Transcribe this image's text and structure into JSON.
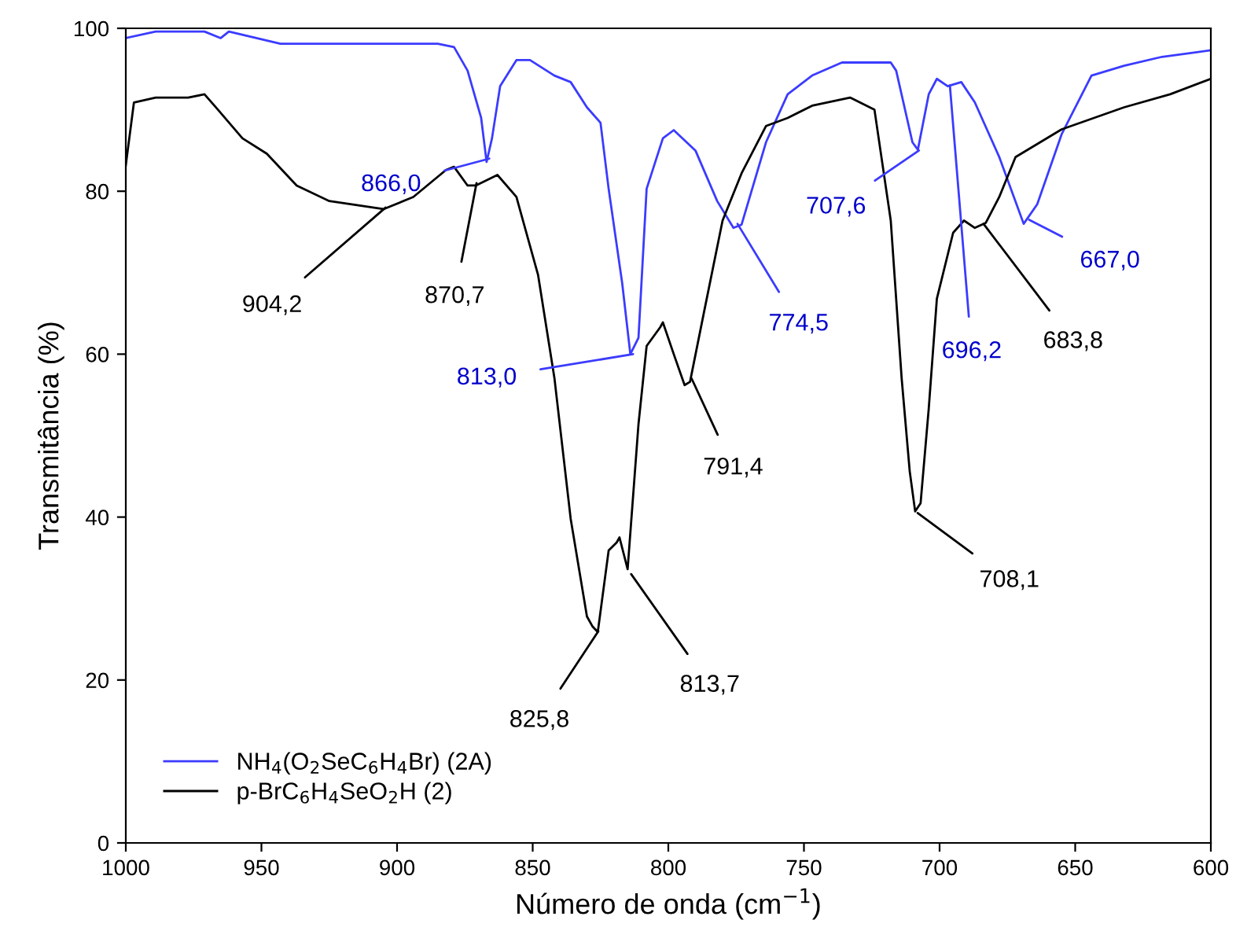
{
  "chart_data": {
    "type": "line",
    "xlabel": "Número de onda (cm$^{−1}$)",
    "ylabel": "Transmitância (%)",
    "xlim": [
      1000,
      600
    ],
    "ylim": [
      0,
      100
    ],
    "xticks": [
      1000,
      950,
      900,
      850,
      800,
      750,
      700,
      650,
      600
    ],
    "yticks": [
      0,
      20,
      40,
      60,
      80,
      100
    ],
    "grid": false,
    "legend": "bottom left",
    "marker": "none",
    "line_style": "solid",
    "series": [
      {
        "name": "NH$_{4}$(O$_{2}$SeC$_{6}$H$_{4}$Br) (2A)",
        "color": "#3b3bff",
        "x": [
          1000,
          989,
          971,
          965,
          962,
          943,
          900,
          885,
          879,
          874,
          869,
          867,
          865,
          862,
          856,
          851,
          842,
          836,
          830,
          825,
          822,
          817,
          814,
          811,
          808,
          802,
          798,
          790,
          782,
          776,
          773,
          764,
          756,
          747,
          736,
          718,
          716,
          710,
          708,
          704,
          701,
          697,
          692,
          687,
          678,
          669,
          664,
          655,
          644,
          632,
          618,
          600
        ],
        "values": [
          98.8,
          99.6,
          99.6,
          98.8,
          99.6,
          98.1,
          98.1,
          98.1,
          97.7,
          94.8,
          89,
          83.6,
          86.5,
          92.9,
          96.1,
          96.1,
          94.2,
          93.4,
          90.3,
          88.4,
          80.3,
          68.7,
          60,
          62,
          80.3,
          86.5,
          87.5,
          85,
          78.8,
          75.5,
          75.9,
          86,
          91.9,
          94.2,
          95.8,
          95.8,
          94.8,
          86,
          85.1,
          91.9,
          93.8,
          92.9,
          93.4,
          90.9,
          84.2,
          76,
          78.4,
          87,
          94.2,
          95.4,
          96.5,
          97.3
        ]
      },
      {
        "name": "p-BrC$_{6}$H$_{4}$SeO$_{2}$H (2)",
        "color": "#000000",
        "x": [
          1000,
          997,
          989,
          977,
          971,
          966,
          957,
          948,
          937,
          925,
          905,
          894,
          882,
          879,
          874,
          871,
          863,
          856,
          848,
          842,
          836,
          830,
          828,
          826,
          822,
          819,
          818,
          815,
          811,
          808,
          803,
          802,
          798,
          794,
          792,
          787,
          780,
          773,
          764,
          756,
          747,
          733,
          724,
          718,
          714,
          711,
          709,
          707,
          704,
          701,
          695,
          691,
          687,
          683,
          678,
          672,
          655,
          632,
          615,
          600
        ],
        "values": [
          83.2,
          90.9,
          91.5,
          91.5,
          91.9,
          90,
          86.5,
          84.6,
          80.7,
          78.8,
          77.8,
          79.3,
          82.6,
          83,
          80.7,
          80.7,
          82,
          79.3,
          69.7,
          57.1,
          39.8,
          27.8,
          26.6,
          25.9,
          35.9,
          36.9,
          37.5,
          33.6,
          51.4,
          61,
          63.3,
          63.9,
          60,
          56.2,
          56.6,
          64.9,
          76.4,
          82.2,
          88,
          89,
          90.5,
          91.5,
          90,
          76.4,
          57.1,
          45.6,
          40.7,
          41.7,
          53.3,
          66.8,
          74.9,
          76.4,
          75.5,
          76.1,
          79.3,
          84.2,
          87.6,
          90.3,
          91.9,
          93.8
        ]
      }
    ],
    "annotations": [
      {
        "text": "866,0",
        "x": 866.0,
        "y": 84
      },
      {
        "text": "813,0",
        "x": 813.0,
        "y": 60
      },
      {
        "text": "774,5",
        "x": 774.5,
        "y": 76
      },
      {
        "text": "707,6",
        "x": 707.6,
        "y": 85
      },
      {
        "text": "696,2",
        "x": 696.2,
        "y": 93
      },
      {
        "text": "667,0",
        "x": 667.0,
        "y": 76.5
      },
      {
        "text": "904,2",
        "x": 904.2,
        "y": 78
      },
      {
        "text": "870,7",
        "x": 870.7,
        "y": 81
      },
      {
        "text": "825,8",
        "x": 825.8,
        "y": 26
      },
      {
        "text": "813,7",
        "x": 813.7,
        "y": 33
      },
      {
        "text": "791,4",
        "x": 791.4,
        "y": 57
      },
      {
        "text": "708,1",
        "x": 708.1,
        "y": 40.5
      },
      {
        "text": "683,8",
        "x": 683.8,
        "y": 76
      }
    ]
  }
}
